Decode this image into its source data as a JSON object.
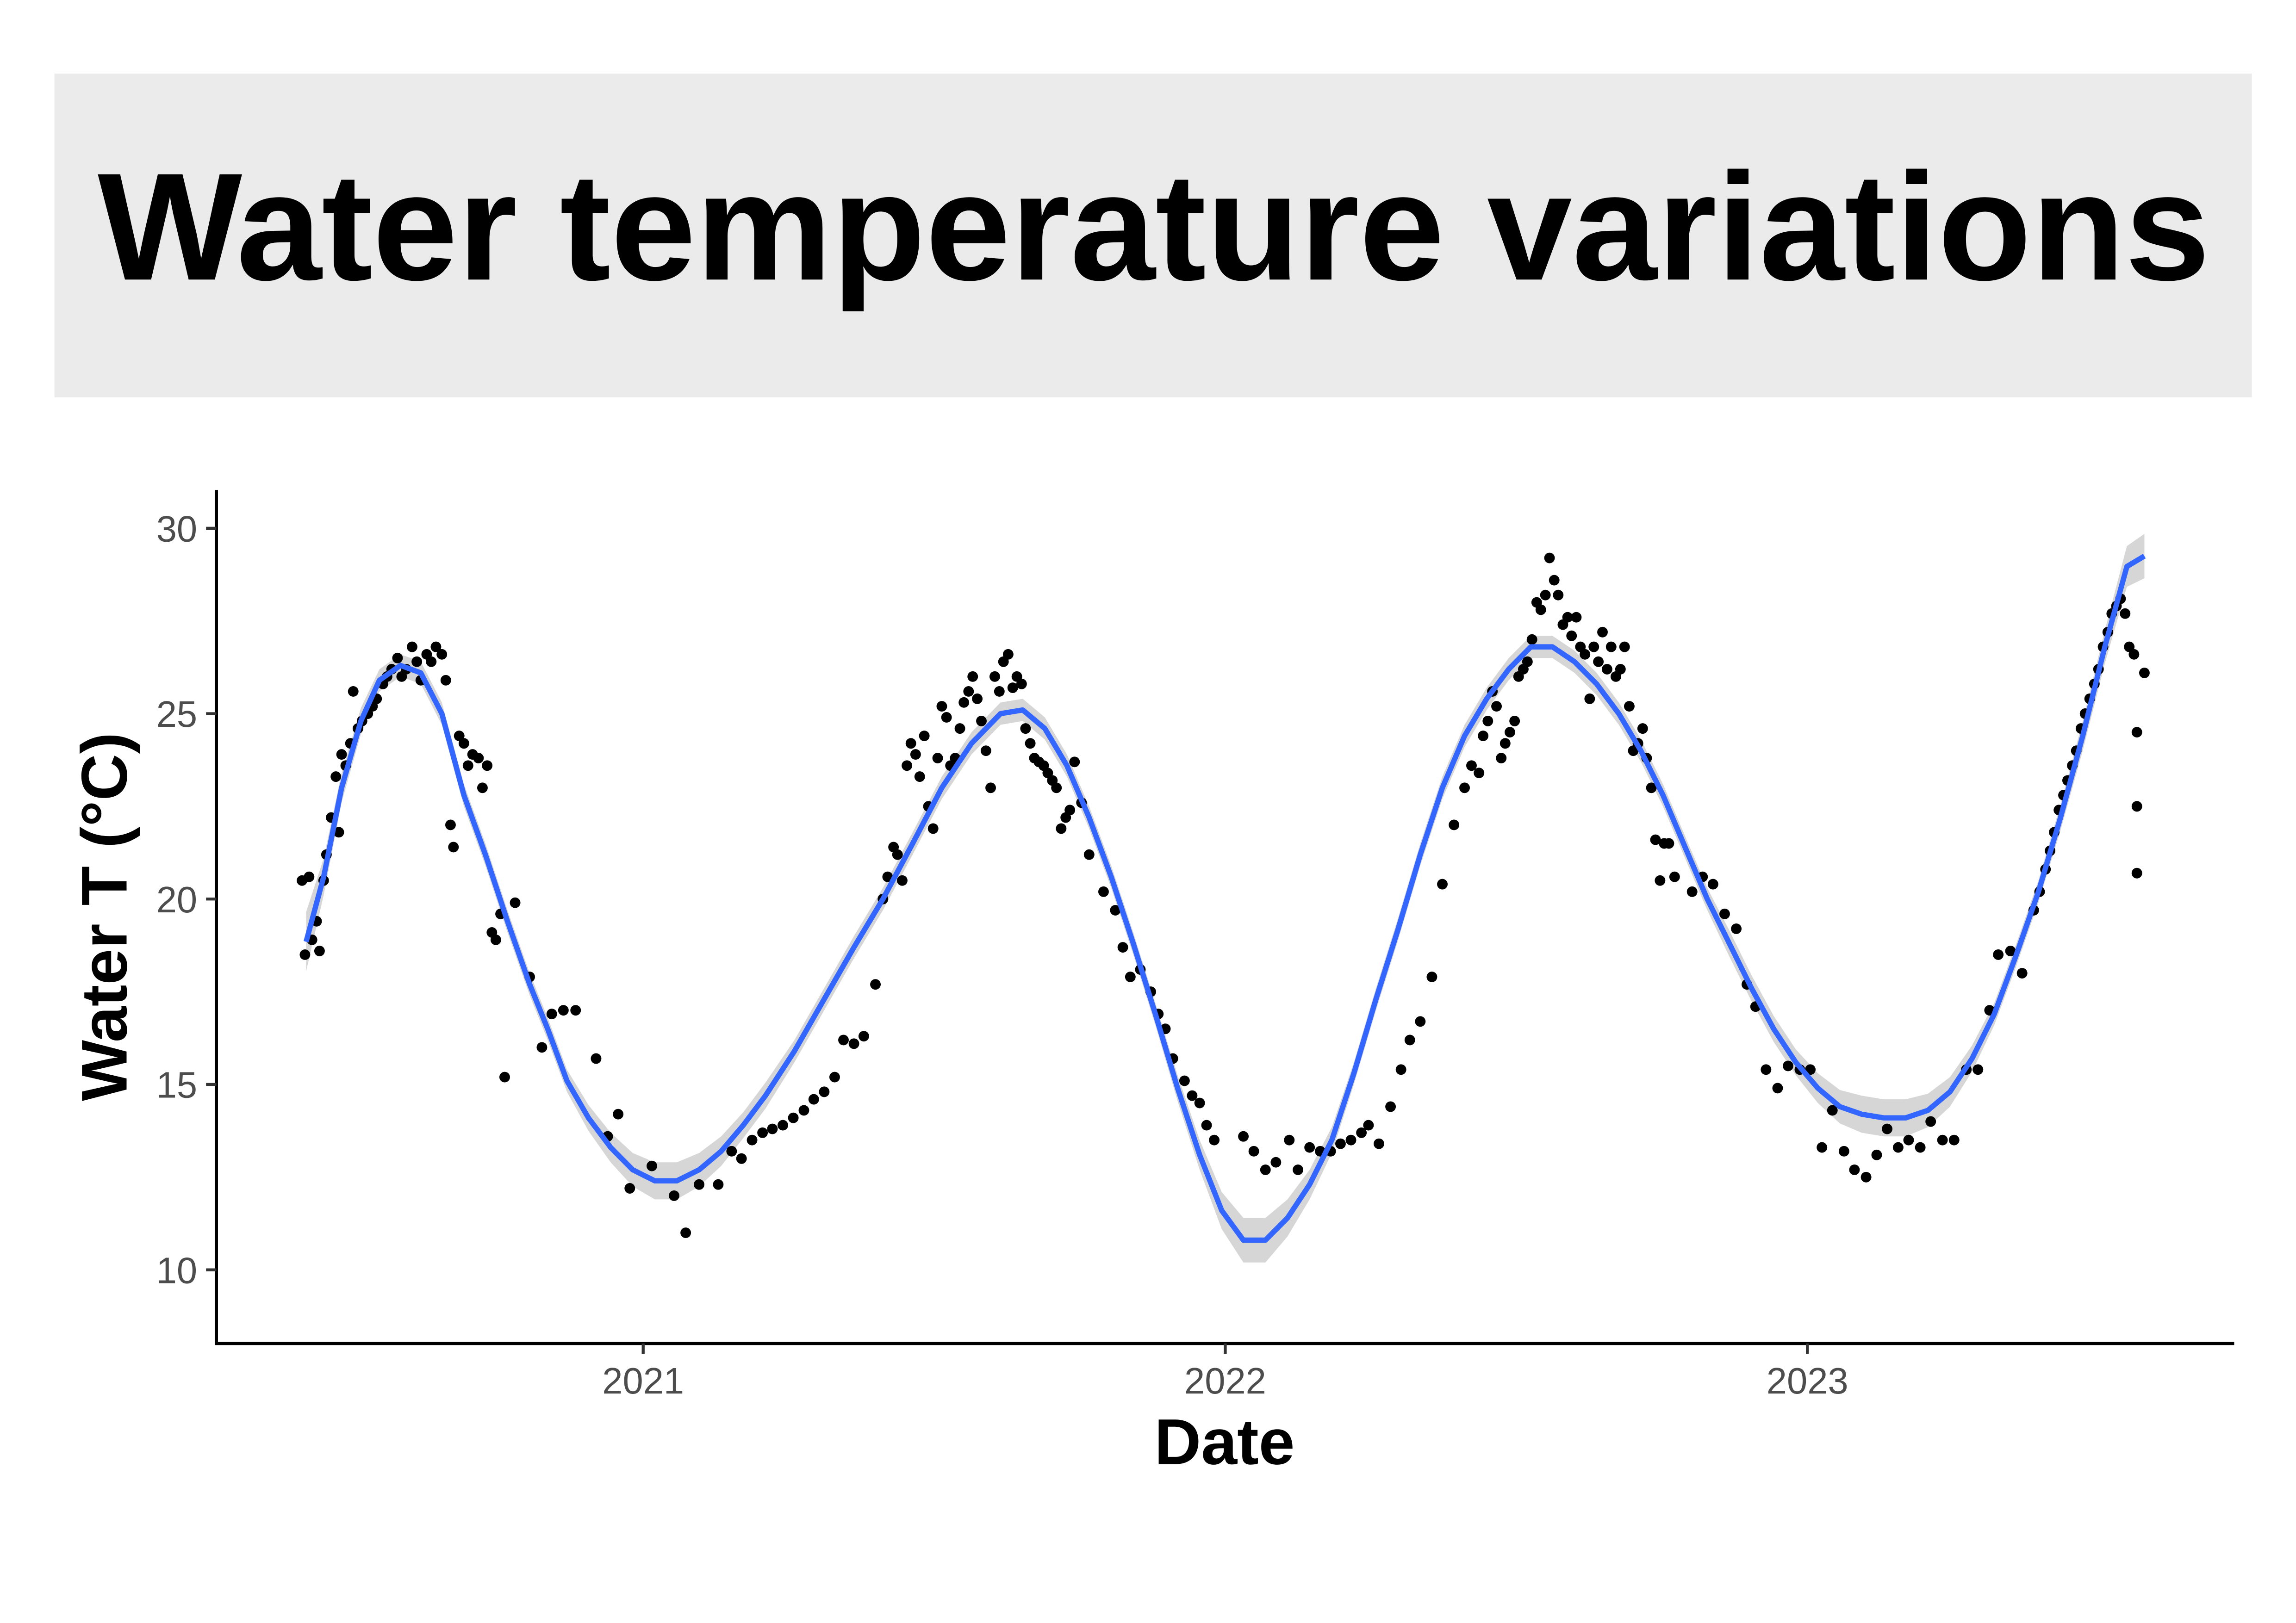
{
  "chart_data": {
    "type": "scatter",
    "title": "Water temperature variations",
    "xlabel": "Date",
    "ylabel": "Water T (°C)",
    "xlim": [
      2020.35,
      2023.82
    ],
    "ylim": [
      7.9,
      31.0
    ],
    "x_ticks": [
      {
        "value": 2021,
        "label": "2021"
      },
      {
        "value": 2022,
        "label": "2022"
      },
      {
        "value": 2023,
        "label": "2023"
      }
    ],
    "y_ticks": [
      {
        "value": 10,
        "label": "10"
      },
      {
        "value": 15,
        "label": "15"
      },
      {
        "value": 20,
        "label": "20"
      },
      {
        "value": 25,
        "label": "25"
      },
      {
        "value": 30,
        "label": "30"
      }
    ],
    "grid": false,
    "legend": "none",
    "colors": {
      "points": "#000000",
      "smooth_line": "#3366FF",
      "ci_band": "#999999",
      "title_background": "#EBEBEB"
    },
    "points": [
      [
        2020.414,
        20.5
      ],
      [
        2020.419,
        18.5
      ],
      [
        2020.426,
        20.6
      ],
      [
        2020.431,
        18.9
      ],
      [
        2020.439,
        19.4
      ],
      [
        2020.444,
        18.6
      ],
      [
        2020.451,
        20.5
      ],
      [
        2020.456,
        21.2
      ],
      [
        2020.464,
        22.2
      ],
      [
        2020.472,
        23.3
      ],
      [
        2020.477,
        21.8
      ],
      [
        2020.482,
        23.9
      ],
      [
        2020.489,
        23.6
      ],
      [
        2020.497,
        24.2
      ],
      [
        2020.502,
        25.6
      ],
      [
        2020.51,
        24.6
      ],
      [
        2020.517,
        24.8
      ],
      [
        2020.527,
        25.0
      ],
      [
        2020.535,
        25.2
      ],
      [
        2020.542,
        25.4
      ],
      [
        2020.553,
        25.8
      ],
      [
        2020.56,
        26.0
      ],
      [
        2020.568,
        26.2
      ],
      [
        2020.578,
        26.5
      ],
      [
        2020.585,
        26.0
      ],
      [
        2020.593,
        26.2
      ],
      [
        2020.603,
        26.8
      ],
      [
        2020.611,
        26.4
      ],
      [
        2020.618,
        25.9
      ],
      [
        2020.628,
        26.6
      ],
      [
        2020.636,
        26.4
      ],
      [
        2020.644,
        26.8
      ],
      [
        2020.654,
        26.6
      ],
      [
        2020.661,
        25.9
      ],
      [
        2020.669,
        22.0
      ],
      [
        2020.674,
        21.4
      ],
      [
        2020.684,
        24.4
      ],
      [
        2020.692,
        24.2
      ],
      [
        2020.699,
        23.6
      ],
      [
        2020.707,
        23.9
      ],
      [
        2020.717,
        23.8
      ],
      [
        2020.724,
        23.0
      ],
      [
        2020.732,
        23.6
      ],
      [
        2020.74,
        19.1
      ],
      [
        2020.747,
        18.9
      ],
      [
        2020.755,
        19.6
      ],
      [
        2020.762,
        15.2
      ],
      [
        2020.78,
        19.9
      ],
      [
        2020.805,
        17.9
      ],
      [
        2020.826,
        16.0
      ],
      [
        2020.843,
        16.9
      ],
      [
        2020.863,
        17.0
      ],
      [
        2020.884,
        17.0
      ],
      [
        2020.919,
        15.7
      ],
      [
        2020.939,
        13.6
      ],
      [
        2020.957,
        14.2
      ],
      [
        2020.977,
        12.2
      ],
      [
        2021.015,
        12.8
      ],
      [
        2021.053,
        12.0
      ],
      [
        2021.073,
        11.0
      ],
      [
        2021.096,
        12.3
      ],
      [
        2021.129,
        12.3
      ],
      [
        2021.152,
        13.2
      ],
      [
        2021.169,
        13.0
      ],
      [
        2021.187,
        13.5
      ],
      [
        2021.205,
        13.7
      ],
      [
        2021.222,
        13.8
      ],
      [
        2021.24,
        13.9
      ],
      [
        2021.258,
        14.1
      ],
      [
        2021.276,
        14.3
      ],
      [
        2021.293,
        14.6
      ],
      [
        2021.311,
        14.8
      ],
      [
        2021.329,
        15.2
      ],
      [
        2021.344,
        16.2
      ],
      [
        2021.362,
        16.1
      ],
      [
        2021.379,
        16.3
      ],
      [
        2021.399,
        17.7
      ],
      [
        2021.412,
        20.0
      ],
      [
        2021.42,
        20.6
      ],
      [
        2021.43,
        21.4
      ],
      [
        2021.437,
        21.2
      ],
      [
        2021.445,
        20.5
      ],
      [
        2021.453,
        23.6
      ],
      [
        2021.46,
        24.2
      ],
      [
        2021.468,
        23.9
      ],
      [
        2021.475,
        23.3
      ],
      [
        2021.483,
        24.4
      ],
      [
        2021.49,
        22.5
      ],
      [
        2021.498,
        21.9
      ],
      [
        2021.506,
        23.8
      ],
      [
        2021.513,
        25.2
      ],
      [
        2021.521,
        24.9
      ],
      [
        2021.528,
        23.6
      ],
      [
        2021.536,
        23.8
      ],
      [
        2021.544,
        24.6
      ],
      [
        2021.551,
        25.3
      ],
      [
        2021.559,
        25.6
      ],
      [
        2021.566,
        26.0
      ],
      [
        2021.574,
        25.4
      ],
      [
        2021.581,
        24.8
      ],
      [
        2021.589,
        24.0
      ],
      [
        2021.597,
        23.0
      ],
      [
        2021.604,
        26.0
      ],
      [
        2021.612,
        25.6
      ],
      [
        2021.619,
        26.4
      ],
      [
        2021.627,
        26.6
      ],
      [
        2021.635,
        25.7
      ],
      [
        2021.642,
        26.0
      ],
      [
        2021.65,
        25.8
      ],
      [
        2021.657,
        24.6
      ],
      [
        2021.665,
        24.2
      ],
      [
        2021.672,
        23.8
      ],
      [
        2021.68,
        23.7
      ],
      [
        2021.688,
        23.6
      ],
      [
        2021.695,
        23.4
      ],
      [
        2021.703,
        23.2
      ],
      [
        2021.71,
        23.0
      ],
      [
        2021.718,
        21.9
      ],
      [
        2021.726,
        22.2
      ],
      [
        2021.733,
        22.4
      ],
      [
        2021.741,
        23.7
      ],
      [
        2021.753,
        22.6
      ],
      [
        2021.766,
        21.2
      ],
      [
        2021.791,
        20.2
      ],
      [
        2021.811,
        19.7
      ],
      [
        2021.824,
        18.7
      ],
      [
        2021.837,
        17.9
      ],
      [
        2021.854,
        18.1
      ],
      [
        2021.872,
        17.5
      ],
      [
        2021.885,
        16.9
      ],
      [
        2021.897,
        16.5
      ],
      [
        2021.91,
        15.7
      ],
      [
        2021.93,
        15.1
      ],
      [
        2021.943,
        14.7
      ],
      [
        2021.956,
        14.5
      ],
      [
        2021.968,
        13.9
      ],
      [
        2021.981,
        13.5
      ],
      [
        2022.031,
        13.6
      ],
      [
        2022.049,
        13.2
      ],
      [
        2022.069,
        12.7
      ],
      [
        2022.087,
        12.9
      ],
      [
        2022.11,
        13.5
      ],
      [
        2022.125,
        12.7
      ],
      [
        2022.145,
        13.3
      ],
      [
        2022.163,
        13.2
      ],
      [
        2022.181,
        13.2
      ],
      [
        2022.198,
        13.4
      ],
      [
        2022.216,
        13.5
      ],
      [
        2022.234,
        13.7
      ],
      [
        2022.246,
        13.9
      ],
      [
        2022.264,
        13.4
      ],
      [
        2022.284,
        14.4
      ],
      [
        2022.302,
        15.4
      ],
      [
        2022.317,
        16.2
      ],
      [
        2022.335,
        16.7
      ],
      [
        2022.355,
        17.9
      ],
      [
        2022.373,
        20.4
      ],
      [
        2022.393,
        22.0
      ],
      [
        2022.411,
        23.0
      ],
      [
        2022.423,
        23.6
      ],
      [
        2022.436,
        23.4
      ],
      [
        2022.443,
        24.4
      ],
      [
        2022.451,
        24.8
      ],
      [
        2022.459,
        25.6
      ],
      [
        2022.466,
        25.2
      ],
      [
        2022.474,
        23.8
      ],
      [
        2022.481,
        24.2
      ],
      [
        2022.489,
        24.5
      ],
      [
        2022.497,
        24.8
      ],
      [
        2022.504,
        26.0
      ],
      [
        2022.512,
        26.2
      ],
      [
        2022.519,
        26.4
      ],
      [
        2022.527,
        27.0
      ],
      [
        2022.535,
        28.0
      ],
      [
        2022.542,
        27.8
      ],
      [
        2022.55,
        28.2
      ],
      [
        2022.557,
        29.2
      ],
      [
        2022.565,
        28.6
      ],
      [
        2022.572,
        28.2
      ],
      [
        2022.58,
        27.4
      ],
      [
        2022.588,
        27.6
      ],
      [
        2022.595,
        27.1
      ],
      [
        2022.603,
        27.6
      ],
      [
        2022.61,
        26.8
      ],
      [
        2022.618,
        26.6
      ],
      [
        2022.626,
        25.4
      ],
      [
        2022.633,
        26.8
      ],
      [
        2022.641,
        26.4
      ],
      [
        2022.648,
        27.2
      ],
      [
        2022.656,
        26.2
      ],
      [
        2022.663,
        26.8
      ],
      [
        2022.671,
        26.0
      ],
      [
        2022.679,
        26.2
      ],
      [
        2022.686,
        26.8
      ],
      [
        2022.694,
        25.2
      ],
      [
        2022.701,
        24.0
      ],
      [
        2022.709,
        24.2
      ],
      [
        2022.717,
        24.6
      ],
      [
        2022.724,
        23.8
      ],
      [
        2022.732,
        23.0
      ],
      [
        2022.739,
        21.6
      ],
      [
        2022.747,
        20.5
      ],
      [
        2022.754,
        21.5
      ],
      [
        2022.762,
        21.5
      ],
      [
        2022.772,
        20.6
      ],
      [
        2022.802,
        20.2
      ],
      [
        2022.82,
        20.6
      ],
      [
        2022.838,
        20.4
      ],
      [
        2022.858,
        19.6
      ],
      [
        2022.878,
        19.2
      ],
      [
        2022.896,
        17.7
      ],
      [
        2022.911,
        17.1
      ],
      [
        2022.929,
        15.4
      ],
      [
        2022.949,
        14.9
      ],
      [
        2022.967,
        15.5
      ],
      [
        2022.987,
        15.4
      ],
      [
        2023.005,
        15.4
      ],
      [
        2023.025,
        13.3
      ],
      [
        2023.043,
        14.3
      ],
      [
        2023.063,
        13.2
      ],
      [
        2023.081,
        12.7
      ],
      [
        2023.101,
        12.5
      ],
      [
        2023.119,
        13.1
      ],
      [
        2023.137,
        13.8
      ],
      [
        2023.156,
        13.3
      ],
      [
        2023.174,
        13.5
      ],
      [
        2023.194,
        13.3
      ],
      [
        2023.212,
        14.0
      ],
      [
        2023.232,
        13.5
      ],
      [
        2023.252,
        13.5
      ],
      [
        2023.273,
        15.4
      ],
      [
        2023.293,
        15.4
      ],
      [
        2023.313,
        17.0
      ],
      [
        2023.328,
        18.5
      ],
      [
        2023.349,
        18.6
      ],
      [
        2023.369,
        18.0
      ],
      [
        2023.389,
        19.7
      ],
      [
        2023.399,
        20.2
      ],
      [
        2023.409,
        20.8
      ],
      [
        2023.417,
        21.3
      ],
      [
        2023.424,
        21.8
      ],
      [
        2023.432,
        22.4
      ],
      [
        2023.44,
        22.8
      ],
      [
        2023.447,
        23.2
      ],
      [
        2023.455,
        23.6
      ],
      [
        2023.462,
        24.0
      ],
      [
        2023.47,
        24.6
      ],
      [
        2023.477,
        25.0
      ],
      [
        2023.485,
        25.4
      ],
      [
        2023.493,
        25.8
      ],
      [
        2023.5,
        26.2
      ],
      [
        2023.508,
        26.8
      ],
      [
        2023.516,
        27.2
      ],
      [
        2023.523,
        27.7
      ],
      [
        2023.531,
        27.9
      ],
      [
        2023.538,
        28.1
      ],
      [
        2023.546,
        27.7
      ],
      [
        2023.553,
        26.8
      ],
      [
        2023.561,
        26.6
      ],
      [
        2023.566,
        24.5
      ],
      [
        2023.566,
        22.5
      ],
      [
        2023.566,
        20.7
      ],
      [
        2023.579,
        26.1
      ]
    ],
    "smooth": {
      "method": "loess",
      "x": [
        2020.421,
        2020.451,
        2020.482,
        2020.515,
        2020.547,
        2020.583,
        2020.618,
        2020.654,
        2020.692,
        2020.729,
        2020.767,
        2020.805,
        2020.836,
        2020.869,
        2020.906,
        2020.944,
        2020.982,
        2021.02,
        2021.058,
        2021.096,
        2021.134,
        2021.172,
        2021.21,
        2021.26,
        2021.311,
        2021.362,
        2021.412,
        2021.463,
        2021.513,
        2021.564,
        2021.614,
        2021.652,
        2021.69,
        2021.728,
        2021.766,
        2021.804,
        2021.842,
        2021.88,
        2021.918,
        2021.956,
        2021.994,
        2022.031,
        2022.069,
        2022.107,
        2022.145,
        2022.183,
        2022.221,
        2022.259,
        2022.297,
        2022.335,
        2022.373,
        2022.411,
        2022.449,
        2022.487,
        2022.525,
        2022.562,
        2022.6,
        2022.638,
        2022.676,
        2022.714,
        2022.752,
        2022.79,
        2022.828,
        2022.866,
        2022.904,
        2022.942,
        2022.98,
        2023.018,
        2023.056,
        2023.093,
        2023.131,
        2023.169,
        2023.207,
        2023.245,
        2023.283,
        2023.321,
        2023.359,
        2023.397,
        2023.435,
        2023.473,
        2023.511,
        2023.549,
        2023.579
      ],
      "y": [
        18.85,
        20.6,
        23.0,
        24.8,
        25.9,
        26.3,
        26.1,
        25.0,
        22.8,
        21.2,
        19.4,
        17.7,
        16.5,
        15.1,
        14.1,
        13.3,
        12.7,
        12.4,
        12.4,
        12.7,
        13.2,
        13.9,
        14.7,
        15.9,
        17.3,
        18.7,
        20.0,
        21.5,
        23.0,
        24.2,
        25.0,
        25.1,
        24.6,
        23.6,
        22.2,
        20.6,
        18.8,
        16.9,
        14.9,
        13.1,
        11.6,
        10.8,
        10.8,
        11.4,
        12.3,
        13.5,
        15.3,
        17.3,
        19.2,
        21.2,
        23.0,
        24.4,
        25.4,
        26.2,
        26.8,
        26.8,
        26.4,
        25.8,
        25.0,
        24.0,
        22.8,
        21.4,
        20.0,
        18.8,
        17.6,
        16.5,
        15.6,
        14.9,
        14.4,
        14.2,
        14.1,
        14.1,
        14.3,
        14.8,
        15.7,
        16.9,
        18.5,
        20.2,
        22.2,
        24.4,
        26.8,
        28.97,
        29.25
      ],
      "ci_halfwidth": [
        0.8,
        0.5,
        0.4,
        0.35,
        0.3,
        0.3,
        0.3,
        0.3,
        0.3,
        0.3,
        0.3,
        0.3,
        0.3,
        0.3,
        0.35,
        0.4,
        0.45,
        0.5,
        0.5,
        0.45,
        0.4,
        0.35,
        0.35,
        0.3,
        0.3,
        0.3,
        0.3,
        0.3,
        0.3,
        0.3,
        0.3,
        0.3,
        0.3,
        0.3,
        0.3,
        0.3,
        0.3,
        0.3,
        0.35,
        0.4,
        0.5,
        0.6,
        0.6,
        0.5,
        0.4,
        0.35,
        0.3,
        0.3,
        0.3,
        0.3,
        0.3,
        0.3,
        0.3,
        0.3,
        0.3,
        0.3,
        0.3,
        0.3,
        0.3,
        0.3,
        0.3,
        0.3,
        0.3,
        0.35,
        0.35,
        0.35,
        0.35,
        0.4,
        0.45,
        0.5,
        0.5,
        0.5,
        0.45,
        0.4,
        0.35,
        0.3,
        0.3,
        0.3,
        0.35,
        0.4,
        0.45,
        0.55,
        0.6
      ]
    }
  }
}
